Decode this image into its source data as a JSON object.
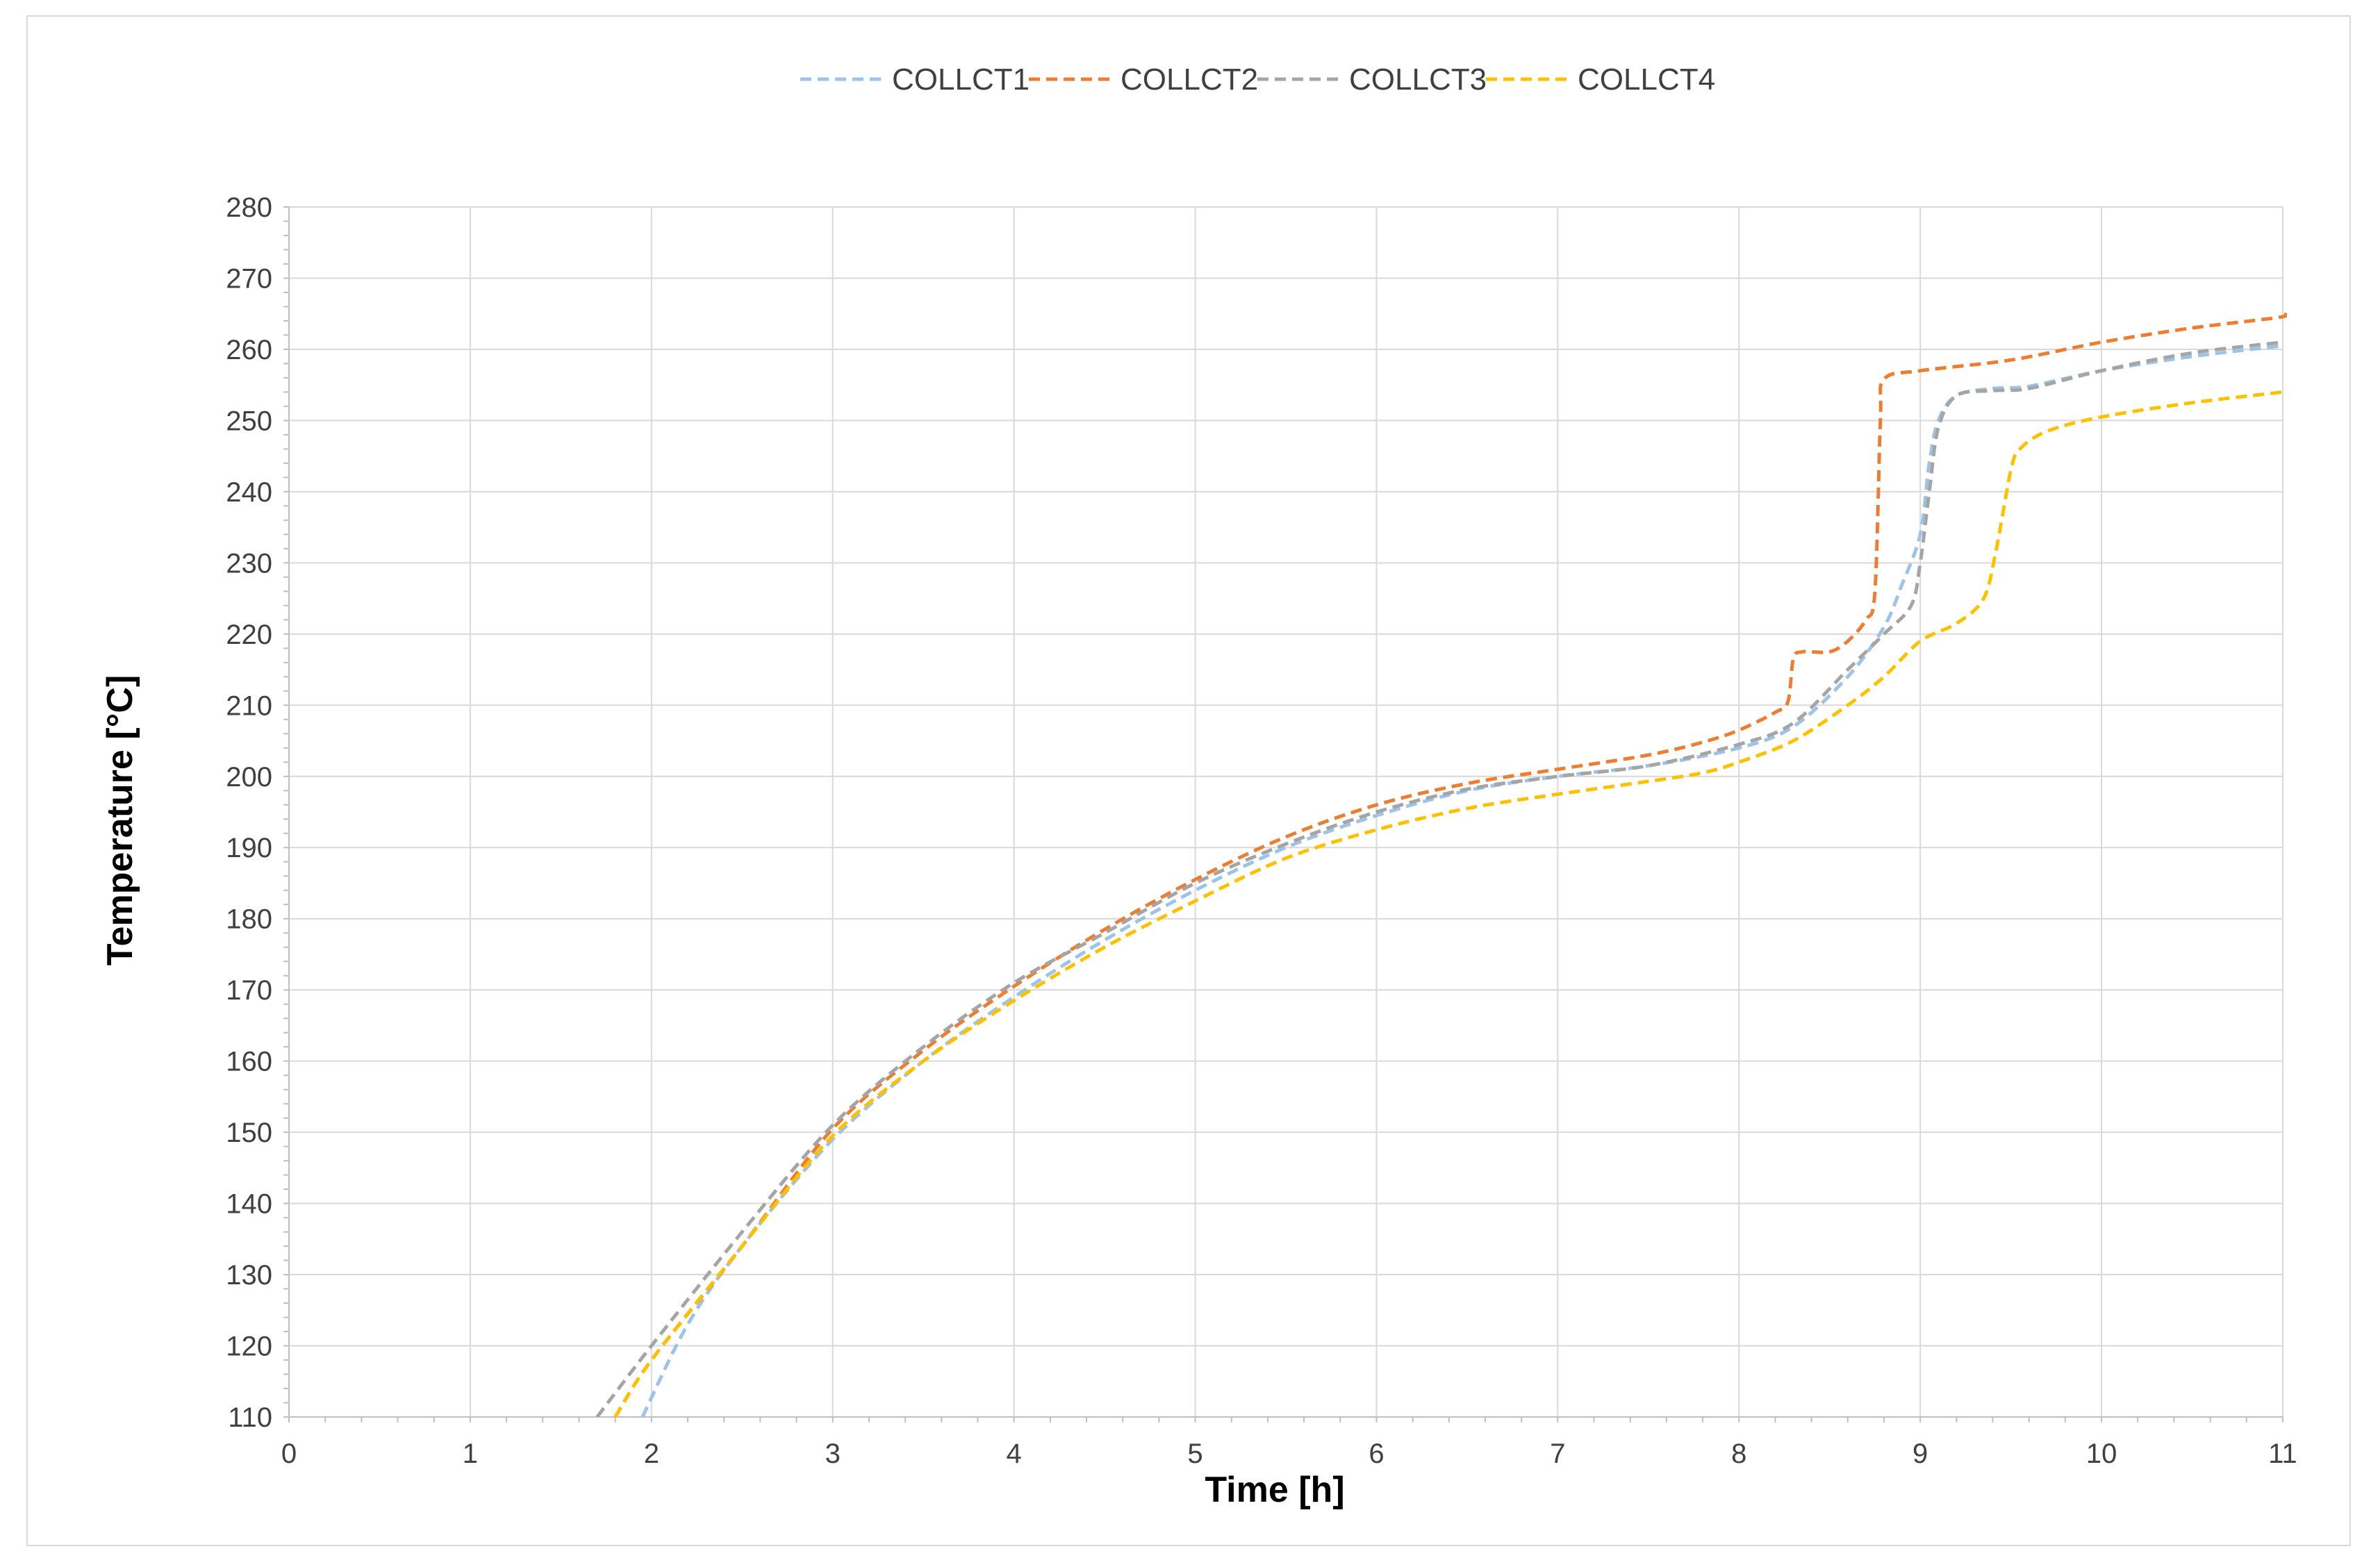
{
  "chart_data": {
    "type": "line",
    "title": "",
    "xlabel": "Time [h]",
    "ylabel": "Temperature [°C]",
    "xlim": [
      0,
      11
    ],
    "ylim": [
      110,
      280
    ],
    "x_ticks": [
      0,
      1,
      2,
      3,
      4,
      5,
      6,
      7,
      8,
      9,
      10,
      11
    ],
    "y_ticks": [
      110,
      120,
      130,
      140,
      150,
      160,
      170,
      180,
      190,
      200,
      210,
      220,
      230,
      240,
      250,
      260,
      270,
      280
    ],
    "grid": true,
    "legend_position": "top",
    "line_style": "dashed",
    "series": [
      {
        "name": "COLLCT1",
        "color": "#9dc3e6",
        "points": [
          [
            1.95,
            110
          ],
          [
            2.2,
            123
          ],
          [
            2.5,
            134
          ],
          [
            3.0,
            149
          ],
          [
            3.5,
            160
          ],
          [
            4.0,
            169
          ],
          [
            4.5,
            177
          ],
          [
            5.0,
            184
          ],
          [
            5.5,
            190
          ],
          [
            6.0,
            194.5
          ],
          [
            6.5,
            198
          ],
          [
            7.0,
            200
          ],
          [
            7.5,
            201.5
          ],
          [
            8.0,
            204
          ],
          [
            8.3,
            207
          ],
          [
            8.6,
            214
          ],
          [
            8.8,
            221
          ],
          [
            8.9,
            227
          ],
          [
            9.0,
            234
          ],
          [
            9.05,
            244
          ],
          [
            9.1,
            250
          ],
          [
            9.2,
            253.5
          ],
          [
            9.4,
            254.5
          ],
          [
            9.6,
            254.8
          ],
          [
            10.0,
            257
          ],
          [
            10.5,
            259
          ],
          [
            11.0,
            260.5
          ]
        ]
      },
      {
        "name": "COLLCT2",
        "color": "#ed7d31",
        "points": [
          [
            1.8,
            110
          ],
          [
            2.0,
            118
          ],
          [
            2.5,
            134
          ],
          [
            3.0,
            150.5
          ],
          [
            3.5,
            161.5
          ],
          [
            4.0,
            170.5
          ],
          [
            4.5,
            178.5
          ],
          [
            5.0,
            185.5
          ],
          [
            5.5,
            191.5
          ],
          [
            6.0,
            196
          ],
          [
            6.5,
            199
          ],
          [
            7.0,
            201
          ],
          [
            7.5,
            203
          ],
          [
            7.8,
            204.8
          ],
          [
            8.0,
            206.5
          ],
          [
            8.2,
            209
          ],
          [
            8.27,
            210.5
          ],
          [
            8.3,
            216.5
          ],
          [
            8.35,
            217.5
          ],
          [
            8.5,
            217.5
          ],
          [
            8.6,
            219
          ],
          [
            8.7,
            222
          ],
          [
            8.75,
            226
          ],
          [
            8.78,
            250
          ],
          [
            8.8,
            255.8
          ],
          [
            9.0,
            257
          ],
          [
            9.5,
            258.5
          ],
          [
            10.0,
            261
          ],
          [
            10.5,
            263
          ],
          [
            10.98,
            264.5
          ],
          [
            11.0,
            265
          ]
        ]
      },
      {
        "name": "COLLCT3",
        "color": "#a5a5a5",
        "points": [
          [
            1.7,
            110
          ],
          [
            2.0,
            120
          ],
          [
            2.5,
            136
          ],
          [
            3.0,
            151
          ],
          [
            3.5,
            162
          ],
          [
            4.0,
            171
          ],
          [
            4.5,
            178
          ],
          [
            5.0,
            185
          ],
          [
            5.5,
            190.5
          ],
          [
            6.0,
            195
          ],
          [
            6.5,
            198.2
          ],
          [
            7.0,
            200
          ],
          [
            7.5,
            201.5
          ],
          [
            8.0,
            204.5
          ],
          [
            8.3,
            207.5
          ],
          [
            8.6,
            215
          ],
          [
            8.8,
            220
          ],
          [
            8.95,
            224
          ],
          [
            9.0,
            230
          ],
          [
            9.05,
            240
          ],
          [
            9.1,
            249
          ],
          [
            9.2,
            253.5
          ],
          [
            9.4,
            254.2
          ],
          [
            9.6,
            254.5
          ],
          [
            10.0,
            257
          ],
          [
            10.5,
            259.5
          ],
          [
            11.0,
            261
          ]
        ]
      },
      {
        "name": "COLLCT4",
        "color": "#ffc000",
        "points": [
          [
            1.8,
            110
          ],
          [
            2.0,
            118
          ],
          [
            2.5,
            134
          ],
          [
            3.0,
            149.5
          ],
          [
            3.5,
            160
          ],
          [
            4.0,
            168.5
          ],
          [
            4.5,
            176
          ],
          [
            5.0,
            182.5
          ],
          [
            5.5,
            188.5
          ],
          [
            6.0,
            192.5
          ],
          [
            6.5,
            195.5
          ],
          [
            7.0,
            197.5
          ],
          [
            7.5,
            199.3
          ],
          [
            7.8,
            200.5
          ],
          [
            8.0,
            202
          ],
          [
            8.3,
            205
          ],
          [
            8.6,
            210
          ],
          [
            8.8,
            214
          ],
          [
            9.0,
            219
          ],
          [
            9.2,
            221.5
          ],
          [
            9.35,
            225
          ],
          [
            9.42,
            232
          ],
          [
            9.5,
            243
          ],
          [
            9.55,
            246
          ],
          [
            9.7,
            248.5
          ],
          [
            10.0,
            250.5
          ],
          [
            10.5,
            252.5
          ],
          [
            11.0,
            254
          ]
        ]
      }
    ]
  }
}
